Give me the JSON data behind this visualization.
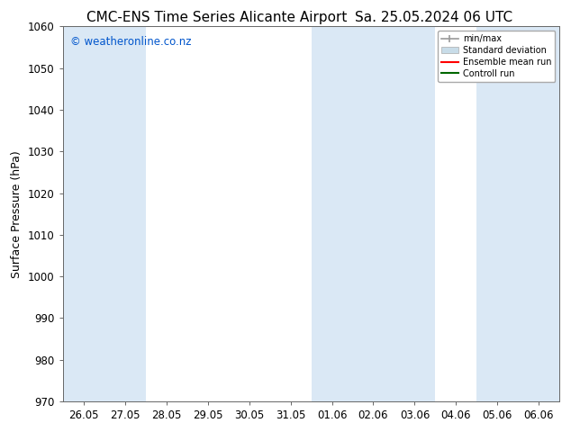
{
  "title_left": "CMC-ENS Time Series Alicante Airport",
  "title_right": "Sa. 25.05.2024 06 UTC",
  "ylabel": "Surface Pressure (hPa)",
  "ylim": [
    970,
    1060
  ],
  "yticks": [
    970,
    980,
    990,
    1000,
    1010,
    1020,
    1030,
    1040,
    1050,
    1060
  ],
  "x_labels": [
    "26.05",
    "27.05",
    "28.05",
    "29.05",
    "30.05",
    "31.05",
    "01.06",
    "02.06",
    "03.06",
    "04.06",
    "05.06",
    "06.06"
  ],
  "watermark": "© weatheronline.co.nz",
  "watermark_color": "#0055cc",
  "shade_color": "#dae8f5",
  "bg_color": "#ffffff",
  "legend_labels": [
    "min/max",
    "Standard deviation",
    "Ensemble mean run",
    "Controll run"
  ],
  "legend_colors": [
    "#999999",
    "#c8dce8",
    "#ff0000",
    "#006600"
  ],
  "title_fontsize": 11,
  "label_fontsize": 9,
  "tick_fontsize": 8.5
}
